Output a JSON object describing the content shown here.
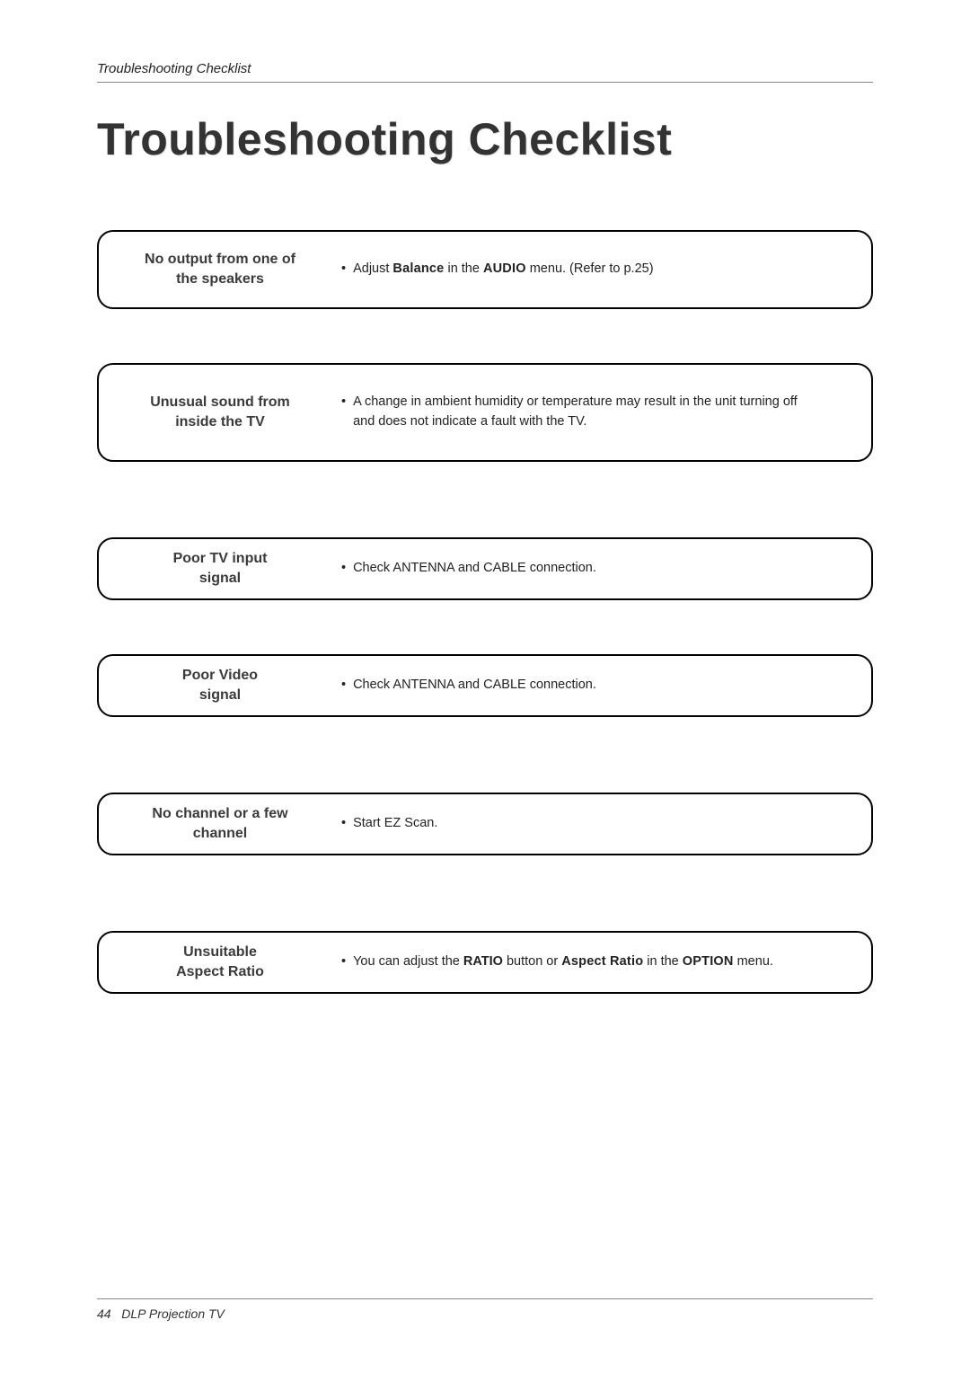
{
  "header": {
    "section_label": "Troubleshooting Checklist"
  },
  "title": "Troubleshooting Checklist",
  "items": [
    {
      "label_line1": "No output from one of",
      "label_line2": "the speakers",
      "detail_prefix": "Adjust ",
      "detail_bold1": "Balance",
      "detail_mid1": " in the ",
      "detail_bold2": "AUDIO",
      "detail_suffix": " menu. (Refer to p.25)"
    },
    {
      "label_line1": "Unusual sound from",
      "label_line2": "inside the TV",
      "detail_line1": "A change in ambient humidity or temperature may result in the unit turning off",
      "detail_line2": "and does not indicate a fault with the TV."
    },
    {
      "label_line1": "Poor TV input",
      "label_line2": "signal",
      "detail_plain": "Check ANTENNA and CABLE connection."
    },
    {
      "label_line1": "Poor Video",
      "label_line2": "signal",
      "detail_plain": "Check ANTENNA and CABLE connection."
    },
    {
      "label_line1": "No channel or a few",
      "label_line2": "channel",
      "detail_plain": "Start EZ Scan."
    },
    {
      "label_line1": "Unsuitable",
      "label_line2": "Aspect Ratio",
      "detail_prefix": "You can adjust the ",
      "detail_bold1": "RATIO",
      "detail_mid1": " button or ",
      "detail_bold2": "Aspect Ratio",
      "detail_mid2": " in the ",
      "detail_bold3": "OPTION",
      "detail_suffix": " menu."
    }
  ],
  "footer": {
    "page_number": "44",
    "product": "DLP Projection TV"
  }
}
